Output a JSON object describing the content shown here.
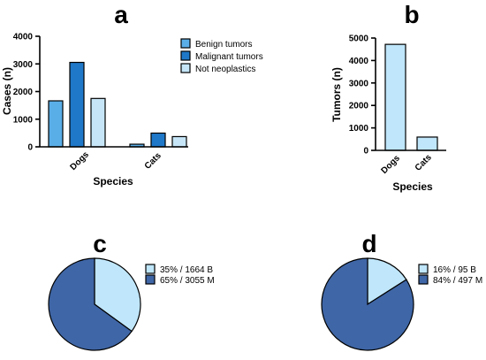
{
  "colors": {
    "benign": "#5aaee8",
    "malignant": "#1f78c8",
    "not_neoplastic": "#c6e6f7",
    "tumors_bar": "#bfe6fa",
    "pie_light": "#bfe6fa",
    "pie_dark": "#3f66a6",
    "outline": "#000000"
  },
  "chart_data": [
    {
      "panel": "a",
      "type": "bar",
      "categories": [
        "Dogs",
        "Cats"
      ],
      "series": [
        {
          "name": "Benign tumors",
          "values": [
            1664,
            95
          ],
          "color_key": "benign"
        },
        {
          "name": "Malignant tumors",
          "values": [
            3055,
            497
          ],
          "color_key": "malignant"
        },
        {
          "name": "Not neoplastics",
          "values": [
            1750,
            370
          ],
          "color_key": "not_neoplastic"
        }
      ],
      "xlabel": "Species",
      "ylabel": "Cases (n)",
      "ylim": [
        0,
        4000
      ],
      "yticks": [
        0,
        1000,
        2000,
        3000,
        4000
      ],
      "legend": "top-right"
    },
    {
      "panel": "b",
      "type": "bar",
      "categories": [
        "Dogs",
        "Cats"
      ],
      "values": [
        4719,
        592
      ],
      "xlabel": "Species",
      "ylabel": "Tumors (n)",
      "ylim": [
        0,
        5000
      ],
      "yticks": [
        0,
        1000,
        2000,
        3000,
        4000,
        5000
      ]
    },
    {
      "panel": "c",
      "type": "pie",
      "slices": [
        {
          "label": "35% / 1664 B",
          "value": 35,
          "color_key": "pie_light"
        },
        {
          "label": "65% / 3055 M",
          "value": 65,
          "color_key": "pie_dark"
        }
      ],
      "legend": "top-right"
    },
    {
      "panel": "d",
      "type": "pie",
      "slices": [
        {
          "label": "16% / 95 B",
          "value": 16,
          "color_key": "pie_light"
        },
        {
          "label": "84% / 497 M",
          "value": 84,
          "color_key": "pie_dark"
        }
      ],
      "legend": "top-right"
    }
  ]
}
